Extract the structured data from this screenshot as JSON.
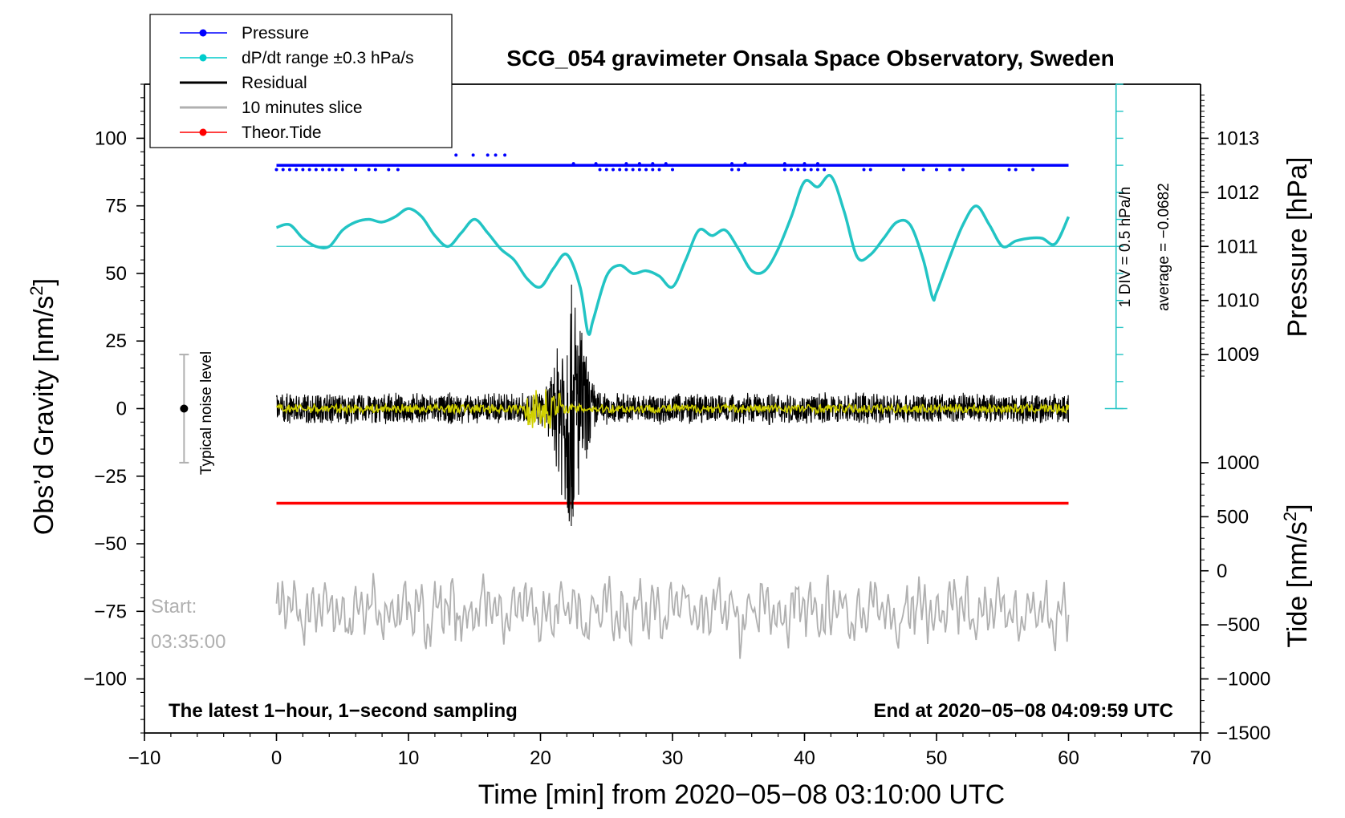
{
  "chart_data": {
    "type": "line",
    "title": "SCG_054 gravimeter Onsala Space Observatory, Sweden",
    "xlabel": "Time [min] from 2020−05−08 03:10:00 UTC",
    "ylabel_left": "Obs’d Gravity [nm/s²]",
    "ylabel_left_parts": {
      "main": "Obs’d Gravity [nm/s",
      "sup": "2",
      "end": "]"
    },
    "ylabel_pressure": "Pressure [hPa]",
    "ylabel_tide": "Tide [nm/s²]",
    "ylabel_tide_parts": {
      "main": "Tide [nm/s",
      "sup": "2",
      "end": "]"
    },
    "xlim": [
      -10,
      70
    ],
    "ylim_left": [
      -120,
      120
    ],
    "x_ticks": [
      "−10",
      "0",
      "10",
      "20",
      "30",
      "40",
      "50",
      "60",
      "70"
    ],
    "x_tick_values": [
      -10,
      0,
      10,
      20,
      30,
      40,
      50,
      60,
      70
    ],
    "y_left_ticks": [
      "100",
      "75",
      "50",
      "25",
      "0",
      "−25",
      "−50",
      "−75",
      "−100"
    ],
    "y_left_tick_values": [
      100,
      75,
      50,
      25,
      0,
      -25,
      -50,
      -75,
      -100
    ],
    "y_pressure_ticks": [
      "1013",
      "1012",
      "1011",
      "1010",
      "1009"
    ],
    "y_pressure_tick_values": [
      1013,
      1012,
      1011,
      1010,
      1009
    ],
    "y_tide_ticks": [
      "1000",
      "500",
      "0",
      "−500",
      "−1000",
      "−1500"
    ],
    "y_tide_tick_values": [
      1000,
      500,
      0,
      -500,
      -1000,
      -1500
    ],
    "legend": [
      {
        "label": "Pressure",
        "color": "#0000ff",
        "marker": true
      },
      {
        "label": "dP/dt range ±0.3 hPa/s",
        "color": "#00cccc",
        "marker": true
      },
      {
        "label": "Residual",
        "color": "#000000",
        "marker": false
      },
      {
        "label": "10 minutes slice",
        "color": "#b0b0b0",
        "marker": false
      },
      {
        "label": "Theor.Tide",
        "color": "#ff0000",
        "marker": true
      }
    ],
    "series": [
      {
        "name": "Pressure",
        "color": "#0000ff",
        "level_gravity": 90,
        "x_range": [
          0,
          60
        ]
      },
      {
        "name": "dP/dt",
        "color": "#22c4c4",
        "x": [
          0,
          1,
          2,
          3,
          4,
          5,
          6,
          7,
          8,
          9,
          10,
          11,
          12,
          13,
          14,
          15,
          16,
          17,
          18,
          19,
          20,
          21,
          22,
          23,
          23.6,
          24,
          25,
          26,
          27,
          28,
          29,
          30,
          31,
          32,
          33,
          34,
          35,
          36,
          37,
          38,
          39,
          40,
          41,
          42,
          43,
          44,
          45,
          46,
          47,
          48,
          49,
          49.7,
          50,
          51,
          52,
          53,
          54,
          55,
          56,
          57,
          58,
          59,
          60
        ],
        "y": [
          67,
          68,
          63,
          60,
          60,
          66,
          69,
          70,
          69,
          71,
          74,
          71,
          64,
          60,
          65,
          70,
          65,
          59,
          55,
          48,
          45,
          52,
          57,
          45,
          28,
          33,
          49,
          53,
          50,
          51,
          49,
          45,
          55,
          66,
          64,
          66,
          59,
          51,
          51,
          59,
          71,
          84,
          82,
          86,
          73,
          56,
          57,
          63,
          69,
          68,
          55,
          41,
          43,
          56,
          68,
          75,
          68,
          60,
          62,
          63,
          63,
          61,
          71
        ]
      },
      {
        "name": "Residual",
        "color": "#000000",
        "noise_amplitude": 9,
        "event_window_min": [
          19,
          25
        ],
        "event_peak_min": 22.3,
        "event_peak_amplitude": 50
      },
      {
        "name": "10 minutes slice",
        "color": "#b0b0b0",
        "center_gravity": -75,
        "amplitude": 10
      },
      {
        "name": "Theor.Tide",
        "color": "#ff0000",
        "level_gravity": -35,
        "x_range": [
          0,
          60
        ]
      }
    ],
    "dpdt_reference_level": 60,
    "noise_bar": {
      "x": -7,
      "center": 0,
      "half_range": 20
    }
  },
  "annotations": {
    "noise_label": "Typical noise level",
    "scale_div": "1 DIV = 0.5 hPa/h",
    "scale_avg": "average = −0.0682",
    "start_label": "Start:",
    "start_time": "03:35:00",
    "footer_left": "The latest 1−hour, 1−second sampling",
    "footer_right": "End at 2020−05−08 04:09:59 UTC"
  }
}
